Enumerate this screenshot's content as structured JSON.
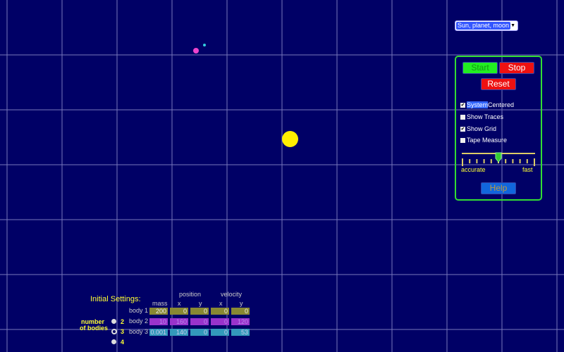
{
  "preset": {
    "selected": "Sun, planet, moon"
  },
  "controls": {
    "start": "Start",
    "stop": "Stop",
    "reset": "Reset",
    "help": "Help",
    "checkboxes": [
      {
        "label_a": "System",
        "label_b": " Centered",
        "checked": true
      },
      {
        "label": "Show Traces",
        "checked": false
      },
      {
        "label": "Show Grid",
        "checked": true
      },
      {
        "label": "Tape Measure",
        "checked": false
      }
    ],
    "speed": {
      "min_label": "accurate",
      "max_label": "fast",
      "value_fraction": 0.5
    }
  },
  "settings": {
    "title": "Initial Settings:",
    "group_position": "position",
    "group_velocity": "velocity",
    "columns": [
      "mass",
      "x",
      "y",
      "x",
      "y"
    ],
    "rows": [
      {
        "label": "body 1",
        "values": [
          "200",
          "0",
          "0",
          "0",
          "0"
        ]
      },
      {
        "label": "body 2",
        "values": [
          "10",
          "160",
          "0",
          "0",
          "120"
        ]
      },
      {
        "label": "body 3",
        "values": [
          "0.001",
          "140",
          "0",
          "0",
          "53"
        ]
      }
    ],
    "number_label_1": "number",
    "number_label_2": "of bodies",
    "counts": [
      "2",
      "3",
      "4"
    ],
    "selected_count": "3"
  },
  "colors": {
    "background": "#000066",
    "sun": "#ffee00",
    "planet": "#ee44cc",
    "moon": "#33ccdd",
    "panel_border": "#33dd33"
  }
}
